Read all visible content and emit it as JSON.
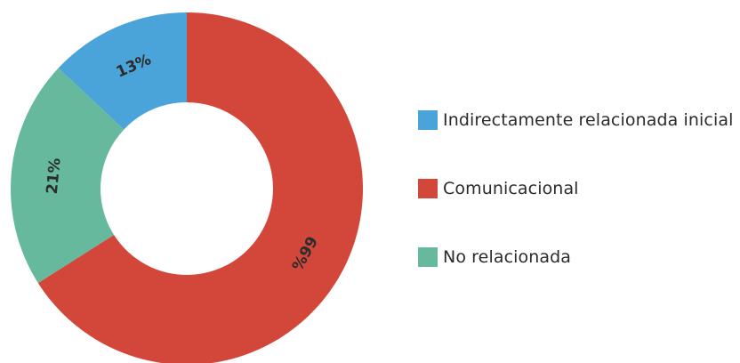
{
  "chart_data": {
    "type": "pie",
    "donut": true,
    "title": "",
    "categories": [
      "Indirectamente relacionada inicial",
      "Comunicacional",
      "No relacionada"
    ],
    "values": [
      13,
      66,
      21
    ],
    "labels": [
      "13%",
      "66%",
      "21%"
    ],
    "colors": [
      "#4aa3d9",
      "#d2473a",
      "#66b99d"
    ],
    "legend_position": "right"
  }
}
